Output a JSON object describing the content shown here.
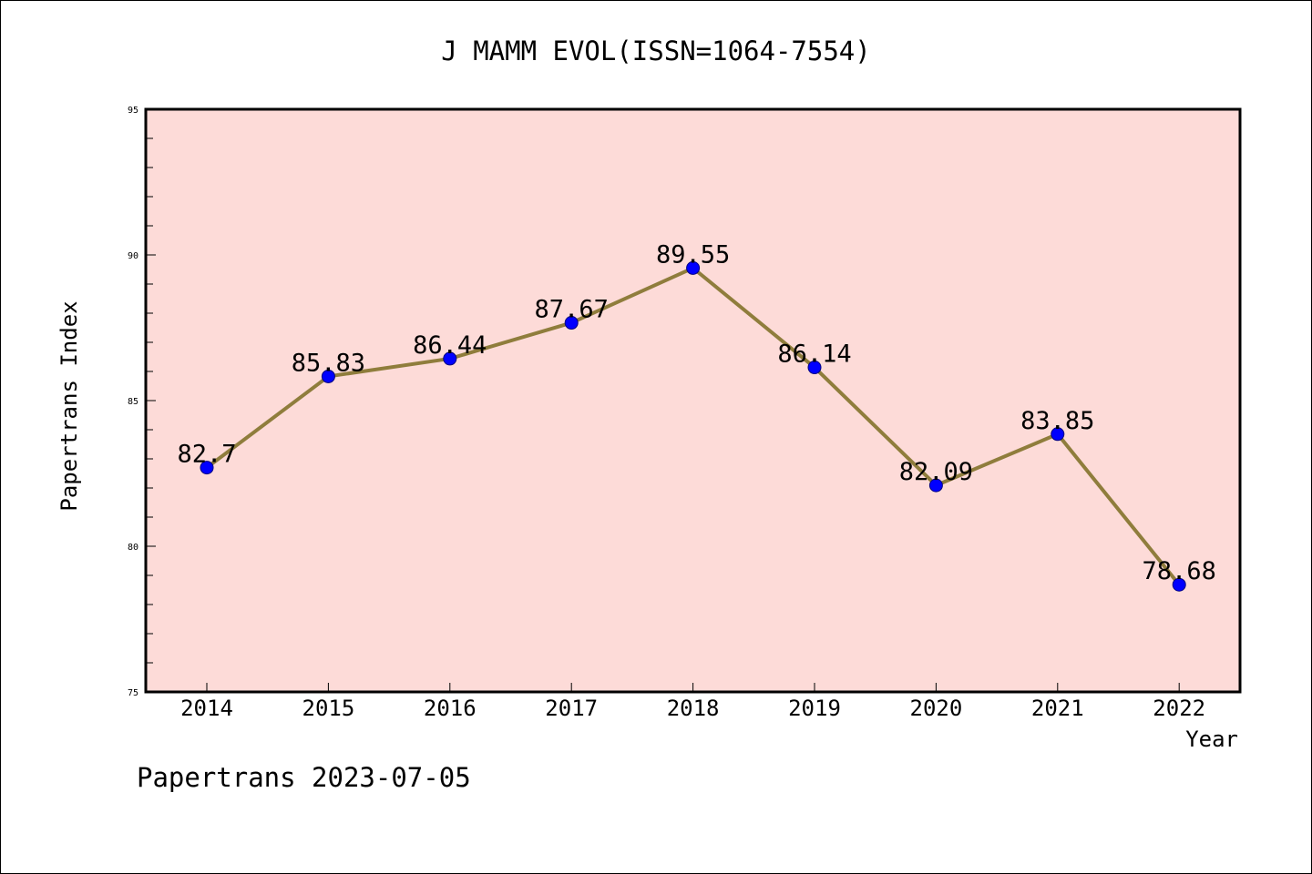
{
  "chart_data": {
    "type": "line",
    "title": "J MAMM EVOL(ISSN=1064-7554)",
    "xlabel": "Year",
    "ylabel": "Papertrans Index",
    "categories": [
      "2014",
      "2015",
      "2016",
      "2017",
      "2018",
      "2019",
      "2020",
      "2021",
      "2022"
    ],
    "values": [
      82.7,
      85.83,
      86.44,
      87.67,
      89.55,
      86.14,
      82.09,
      83.85,
      78.68
    ],
    "data_labels": [
      "82.7",
      "85.83",
      "86.44",
      "87.67",
      "89.55",
      "86.14",
      "82.09",
      "83.85",
      "78.68"
    ],
    "ylim": [
      75,
      95
    ],
    "yticks": [
      75,
      80,
      85,
      90,
      95
    ],
    "ytick_labels": [
      "75",
      "80",
      "85",
      "90",
      "95"
    ],
    "grid": false,
    "colors": {
      "plot_background": "#fddbd8",
      "line": "#8f7d3c",
      "marker": "#0000ff"
    }
  },
  "footer": "Papertrans 2023-07-05"
}
